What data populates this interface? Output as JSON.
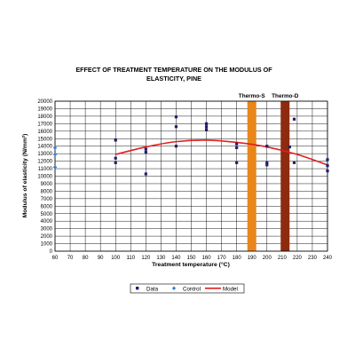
{
  "chart_data": {
    "type": "scatter",
    "title_line1": "EFFECT OF TREATMENT TEMPERATURE ON THE MODULUS OF",
    "title_line2": "ELASTICITY, PINE",
    "xlabel": "Treatment temperature (°C)",
    "ylabel": "Modulus of elasticity (N/mm²)",
    "xlim": [
      60,
      240
    ],
    "ylim": [
      0,
      20000
    ],
    "xticks": [
      60,
      70,
      80,
      90,
      100,
      110,
      120,
      130,
      140,
      150,
      160,
      170,
      180,
      190,
      200,
      210,
      220,
      230,
      240
    ],
    "yticks": [
      0,
      1000,
      2000,
      3000,
      4000,
      5000,
      6000,
      7000,
      8000,
      9000,
      10000,
      11000,
      12000,
      13000,
      14000,
      15000,
      16000,
      17000,
      18000,
      19000,
      20000
    ],
    "grid": true,
    "legend_position": "bottom",
    "series": [
      {
        "name": "Data",
        "kind": "scatter",
        "marker": "square",
        "color": "#1f1f6e",
        "points": [
          [
            100,
            14800
          ],
          [
            100,
            12400
          ],
          [
            100,
            11800
          ],
          [
            120,
            13600
          ],
          [
            120,
            13200
          ],
          [
            120,
            10300
          ],
          [
            140,
            17900
          ],
          [
            140,
            16600
          ],
          [
            140,
            14000
          ],
          [
            160,
            17000
          ],
          [
            160,
            16600
          ],
          [
            160,
            16200
          ],
          [
            180,
            14300
          ],
          [
            180,
            13800
          ],
          [
            180,
            11800
          ],
          [
            200,
            14000
          ],
          [
            200,
            11800
          ],
          [
            200,
            11500
          ],
          [
            215,
            13900
          ],
          [
            218,
            17600
          ],
          [
            218,
            11800
          ],
          [
            240,
            12200
          ],
          [
            240,
            11400
          ],
          [
            240,
            10700
          ]
        ]
      },
      {
        "name": "Control",
        "kind": "scatter",
        "marker": "diamond",
        "color": "#3a7fd5",
        "points": [
          [
            60,
            13800
          ],
          [
            60,
            12900
          ],
          [
            60,
            11200
          ]
        ]
      },
      {
        "name": "Model",
        "kind": "line",
        "color": "#e02020",
        "points": [
          [
            100,
            12900
          ],
          [
            120,
            13900
          ],
          [
            140,
            14600
          ],
          [
            160,
            14800
          ],
          [
            180,
            14500
          ],
          [
            200,
            13900
          ],
          [
            220,
            12900
          ],
          [
            240,
            11500
          ]
        ]
      }
    ],
    "bands": [
      {
        "label": "Thermo-S",
        "x": 190,
        "color": "#e8861a"
      },
      {
        "label": "Thermo-D",
        "x": 212,
        "color": "#8e2a0e"
      }
    ]
  }
}
